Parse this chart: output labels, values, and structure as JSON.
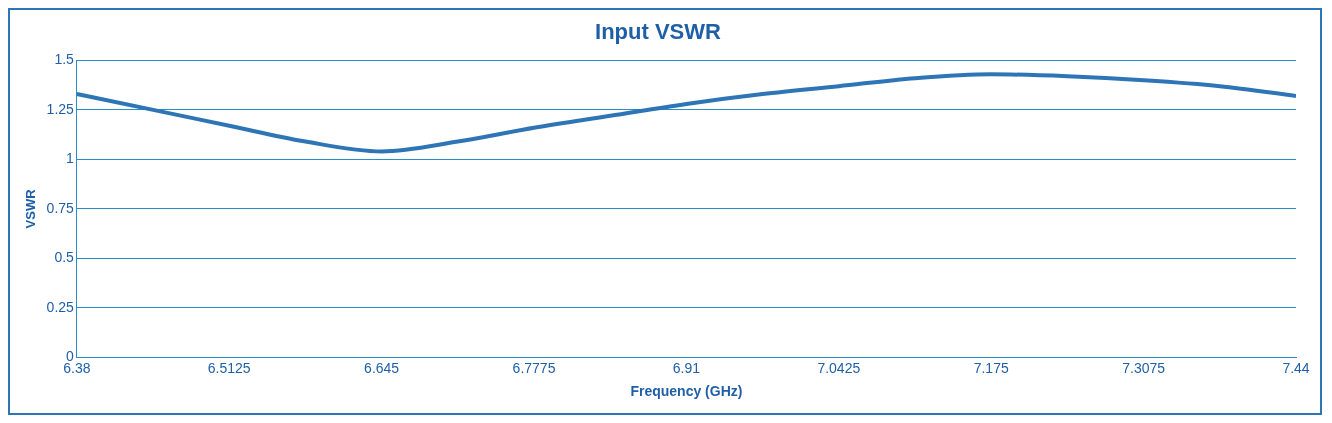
{
  "chart_data": {
    "type": "line",
    "title": "Input VSWR",
    "xlabel": "Frequency (GHz)",
    "ylabel": "VSWR",
    "x": [
      6.38,
      6.4463,
      6.5125,
      6.5788,
      6.645,
      6.7113,
      6.7775,
      6.8438,
      6.91,
      6.9763,
      7.0425,
      7.1088,
      7.175,
      7.2413,
      7.3075,
      7.3738,
      7.44
    ],
    "series": [
      {
        "color": "#2e75b6",
        "values": [
          1.33,
          1.25,
          1.17,
          1.09,
          1.04,
          1.09,
          1.16,
          1.22,
          1.28,
          1.33,
          1.37,
          1.41,
          1.43,
          1.42,
          1.4,
          1.37,
          1.32
        ]
      }
    ],
    "xlim": [
      6.38,
      7.44
    ],
    "xticks": [
      6.38,
      6.5125,
      6.645,
      6.7775,
      6.91,
      7.0425,
      7.175,
      7.3075,
      7.44
    ],
    "ylim": [
      0,
      1.5
    ],
    "yticks": [
      0,
      0.25,
      0.5,
      0.75,
      1,
      1.25,
      1.5
    ],
    "grid": "y",
    "legend": false,
    "marker": "none",
    "line_style": "solid"
  }
}
